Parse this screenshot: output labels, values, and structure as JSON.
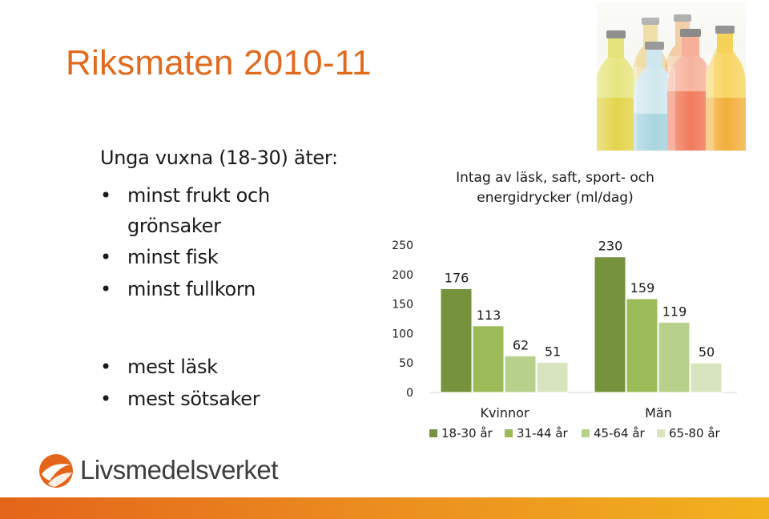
{
  "slide": {
    "title": "Riksmaten 2010-11",
    "intro": "Unga vuxna (18-30) äter:",
    "bullets_group1": [
      "minst frukt och grönsaker",
      "minst fisk",
      "minst fullkorn"
    ],
    "bullets_group2": [
      "mest läsk",
      "mest sötsaker"
    ],
    "bullet_glyph": "•",
    "logo_text": "Livsmedelsverket"
  },
  "colors": {
    "title": "#e06b1f",
    "series": [
      "#77923c",
      "#9bbb59",
      "#b7d08c",
      "#d7e4bd"
    ],
    "footer_start": "#e4651a",
    "footer_end": "#f2b21f"
  },
  "icons": {
    "logo": "livsmedelsverket-logo-icon",
    "photo": "soda-bottles-photo"
  },
  "chart_data": {
    "type": "bar",
    "title": "Intag av läsk, saft, sport- och energidrycker (ml/dag)",
    "categories": [
      "Kvinnor",
      "Män"
    ],
    "series": [
      {
        "name": "18-30 år",
        "values": [
          176,
          230
        ]
      },
      {
        "name": "31-44 år",
        "values": [
          113,
          159
        ]
      },
      {
        "name": "45-64 år",
        "values": [
          62,
          119
        ]
      },
      {
        "name": "65-80 år",
        "values": [
          51,
          50
        ]
      }
    ],
    "yticks": [
      0,
      50,
      100,
      150,
      200,
      250
    ],
    "ylim": [
      0,
      250
    ],
    "grid": false,
    "legend": "bottom",
    "data_labels": true
  }
}
